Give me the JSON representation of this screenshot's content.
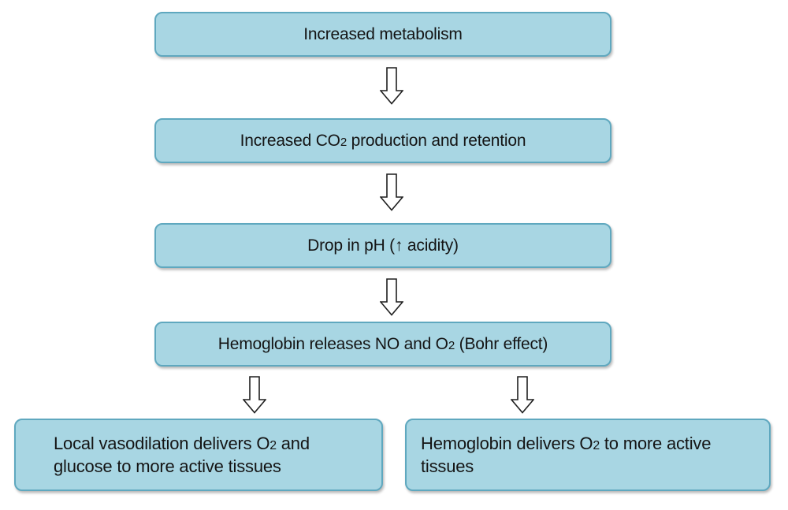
{
  "colors": {
    "background": "#ffffff",
    "box_fill": "#a8d6e3",
    "box_border": "#5fa8bf",
    "text": "#141414",
    "arrow_fill": "#ffffff",
    "arrow_outline": "#1f1f1f"
  },
  "icons": {
    "connector": "down-block-arrow-icon"
  },
  "nodes": [
    {
      "id": "increased-metabolism",
      "parts": [
        {
          "t": "Increased metabolism"
        }
      ]
    },
    {
      "id": "co2-production",
      "parts": [
        {
          "t": "Increased CO"
        },
        {
          "t": "2",
          "sub": true
        },
        {
          "t": " production and retention"
        }
      ]
    },
    {
      "id": "ph-drop",
      "parts": [
        {
          "t": "Drop in pH (↑ acidity)"
        }
      ]
    },
    {
      "id": "bohr-effect",
      "parts": [
        {
          "t": "Hemoglobin releases NO and O"
        },
        {
          "t": "2",
          "sub": true
        },
        {
          "t": " (Bohr effect)"
        }
      ]
    },
    {
      "id": "local-vasodilation",
      "parts": [
        {
          "t": "Local vasodilation delivers O"
        },
        {
          "t": "2",
          "sub": true
        },
        {
          "t": " and"
        },
        {
          "br": true
        },
        {
          "t": "glucose to more active tissues"
        }
      ]
    },
    {
      "id": "hemoglobin-delivery",
      "parts": [
        {
          "t": "Hemoglobin delivers O"
        },
        {
          "t": "2",
          "sub": true
        },
        {
          "t": " to more active"
        },
        {
          "br": true
        },
        {
          "t": "tissues"
        }
      ]
    }
  ]
}
